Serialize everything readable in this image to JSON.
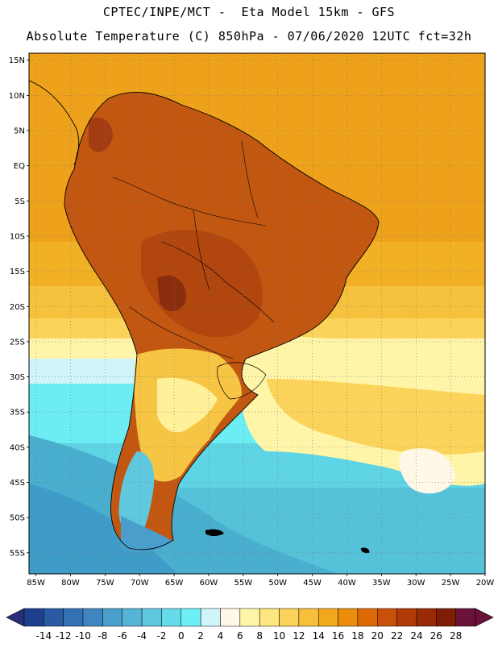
{
  "header": {
    "line1": "CPTEC/INPE/MCT -  Eta Model 15km - GFS",
    "line2": "Absolute Temperature (C) 850hPa - 07/06/2020 12UTC fct=32h"
  },
  "map": {
    "lat_labels": [
      "15N",
      "10N",
      "5N",
      "EQ",
      "5S",
      "10S",
      "15S",
      "20S",
      "25S",
      "30S",
      "35S",
      "40S",
      "45S",
      "50S",
      "55S"
    ],
    "lat_values": [
      15,
      10,
      5,
      0,
      -5,
      -10,
      -15,
      -20,
      -25,
      -30,
      -35,
      -40,
      -45,
      -50,
      -55
    ],
    "lon_labels": [
      "85W",
      "80W",
      "75W",
      "70W",
      "65W",
      "60W",
      "55W",
      "50W",
      "45W",
      "40W",
      "35W",
      "30W",
      "25W",
      "20W"
    ],
    "lon_values": [
      -85,
      -80,
      -75,
      -70,
      -65,
      -60,
      -55,
      -50,
      -45,
      -40,
      -35,
      -30,
      -25,
      -20
    ],
    "extent": {
      "lon_min": -86,
      "lon_max": -20,
      "lat_min": -58,
      "lat_max": 16
    },
    "gridlines": "dotted"
  },
  "colorbar": {
    "labels": [
      "-14",
      "-12",
      "-10",
      "-8",
      "-6",
      "-4",
      "-2",
      "0",
      "2",
      "4",
      "6",
      "8",
      "10",
      "12",
      "14",
      "16",
      "18",
      "20",
      "22",
      "24",
      "26",
      "28"
    ],
    "colors": [
      "#1f3f8f",
      "#2a5aa3",
      "#3371b3",
      "#3f86c0",
      "#4a9ecb",
      "#56b4d6",
      "#5fc8de",
      "#66dcea",
      "#6cf0f5",
      "#cff5fb",
      "#fff8e6",
      "#fff5a8",
      "#ffe680",
      "#fcd35a",
      "#f7bf3c",
      "#f2a81c",
      "#ec8c0c",
      "#dd6a06",
      "#c85008",
      "#b23a07",
      "#982a06",
      "#7d1e05",
      "#6a1238"
    ],
    "left_arrow_color": "#2a2f7a",
    "right_arrow_color": "#6a1238"
  }
}
